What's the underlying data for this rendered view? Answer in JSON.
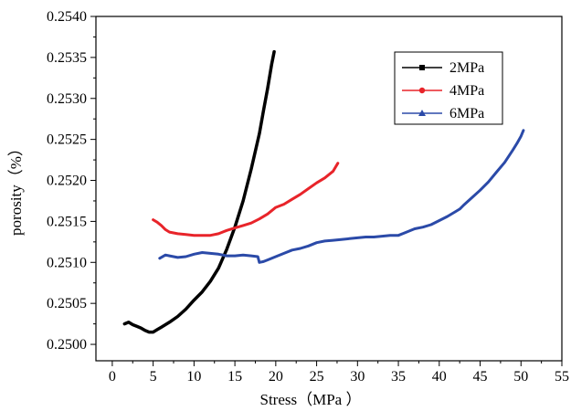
{
  "chart_data": {
    "type": "line",
    "title": "",
    "xlabel": "Stress（MPa ）",
    "ylabel": "porosity（%）",
    "xlim": [
      -2,
      55
    ],
    "ylim": [
      0.2498,
      0.254
    ],
    "x_ticks": [
      0,
      5,
      10,
      15,
      20,
      25,
      30,
      35,
      40,
      45,
      50,
      55
    ],
    "x_tick_labels": [
      "0",
      "5",
      "10",
      "15",
      "20",
      "25",
      "30",
      "35",
      "40",
      "45",
      "50",
      "55"
    ],
    "y_ticks": [
      0.25,
      0.2505,
      0.251,
      0.2515,
      0.252,
      0.2525,
      0.253,
      0.2535,
      0.254
    ],
    "y_tick_labels": [
      "0.2500",
      "0.2505",
      "0.2510",
      "0.2515",
      "0.2520",
      "0.2525",
      "0.2530",
      "0.2535",
      "0.2540"
    ],
    "grid": false,
    "legend_position": "top-right",
    "series": [
      {
        "name": "2MPa",
        "color": "#000000",
        "marker": "square",
        "x": [
          1.5,
          2.0,
          2.5,
          3.0,
          3.5,
          4.0,
          4.5,
          5.0,
          5.5,
          6.0,
          7.0,
          8.0,
          9.0,
          10.0,
          11.0,
          12.0,
          13.0,
          14.0,
          15.0,
          16.0,
          17.0,
          18.0,
          18.5,
          19.0,
          19.5,
          19.8
        ],
        "y": [
          0.25025,
          0.25027,
          0.25024,
          0.25022,
          0.2502,
          0.25017,
          0.25015,
          0.25015,
          0.25018,
          0.25021,
          0.25027,
          0.25034,
          0.25043,
          0.25054,
          0.25064,
          0.25077,
          0.25093,
          0.25116,
          0.25143,
          0.25175,
          0.25214,
          0.25257,
          0.25285,
          0.25312,
          0.25342,
          0.25357
        ]
      },
      {
        "name": "4MPa",
        "color": "#e8242a",
        "marker": "circle",
        "x": [
          5.0,
          5.5,
          6.0,
          6.5,
          7.0,
          8.0,
          9.0,
          10.0,
          11.0,
          12.0,
          13.0,
          14.0,
          15.0,
          16.0,
          17.0,
          18.0,
          19.0,
          20.0,
          21.0,
          22.0,
          23.0,
          24.0,
          25.0,
          26.0,
          27.0,
          27.6
        ],
        "y": [
          0.25152,
          0.25149,
          0.25145,
          0.2514,
          0.25137,
          0.25135,
          0.25134,
          0.25133,
          0.25133,
          0.25133,
          0.25135,
          0.25139,
          0.25142,
          0.25145,
          0.25148,
          0.25153,
          0.25159,
          0.25167,
          0.25171,
          0.25177,
          0.25183,
          0.2519,
          0.25197,
          0.25203,
          0.25211,
          0.25221
        ]
      },
      {
        "name": "6MPa",
        "color": "#2b4aa8",
        "marker": "triangle",
        "x": [
          5.8,
          6.5,
          7.0,
          8.0,
          9.0,
          10.0,
          11.0,
          12.0,
          13.0,
          14.0,
          15.0,
          16.0,
          17.0,
          17.8,
          18.0,
          18.5,
          19.0,
          20.0,
          21.0,
          22.0,
          23.0,
          24.0,
          25.0,
          26.0,
          27.0,
          28.0,
          29.0,
          30.0,
          31.0,
          32.0,
          33.0,
          34.0,
          35.0,
          36.0,
          37.0,
          38.0,
          39.0,
          40.0,
          41.0,
          42.0,
          42.5,
          43.0,
          44.0,
          45.0,
          46.0,
          47.0,
          48.0,
          49.0,
          49.5,
          50.0,
          50.3
        ],
        "y": [
          0.25105,
          0.25109,
          0.25108,
          0.25106,
          0.25107,
          0.2511,
          0.25112,
          0.25111,
          0.2511,
          0.25108,
          0.25108,
          0.25109,
          0.25108,
          0.25107,
          0.251,
          0.25101,
          0.25103,
          0.25107,
          0.25111,
          0.25115,
          0.25117,
          0.2512,
          0.25124,
          0.25126,
          0.25127,
          0.25128,
          0.25129,
          0.2513,
          0.25131,
          0.25131,
          0.25132,
          0.25133,
          0.25133,
          0.25137,
          0.25141,
          0.25143,
          0.25146,
          0.25151,
          0.25156,
          0.25162,
          0.25165,
          0.2517,
          0.25179,
          0.25188,
          0.25198,
          0.2521,
          0.25222,
          0.25237,
          0.25245,
          0.25254,
          0.25261
        ]
      }
    ]
  }
}
